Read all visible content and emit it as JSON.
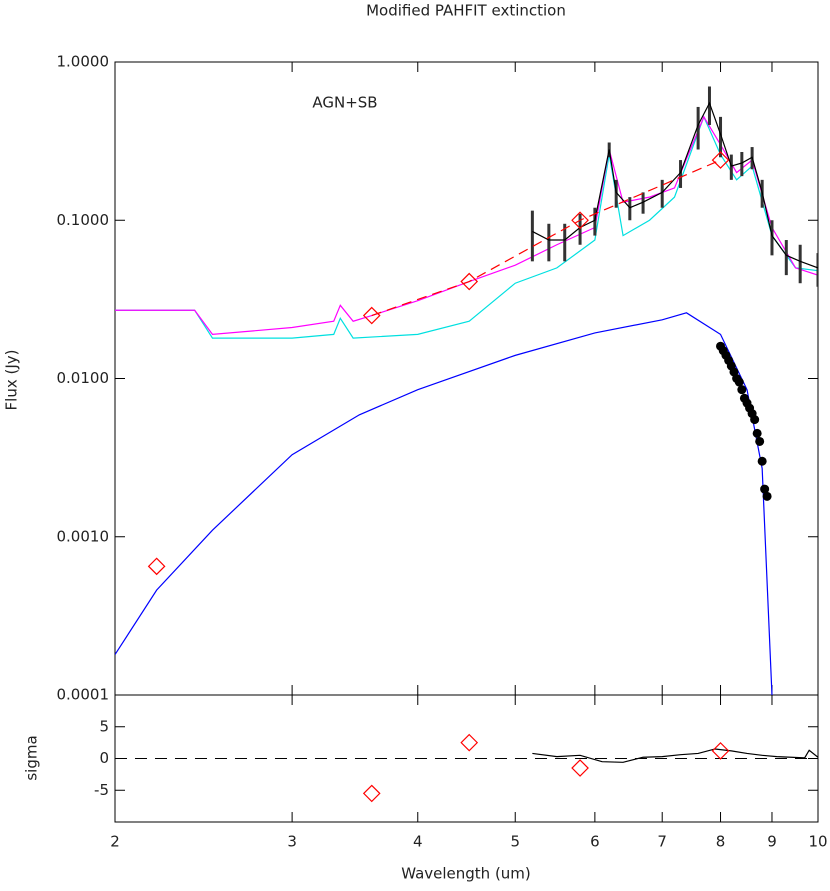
{
  "chart_data": [
    {
      "type": "line",
      "title": "Modified PAHFIT extinction",
      "ylabel": "Flux (Jy)",
      "annotation": "AGN+SB",
      "xlog": true,
      "ylog": true,
      "xlim": [
        2,
        10
      ],
      "xticks": [
        2,
        3,
        4,
        5,
        6,
        7,
        8,
        9,
        10
      ],
      "ylim": [
        0.0001,
        1
      ],
      "yticks": [
        {
          "value": 1,
          "label": "1.0000"
        },
        {
          "value": 0.1,
          "label": "0.1000"
        },
        {
          "value": 0.01,
          "label": "0.0100"
        },
        {
          "value": 0.001,
          "label": "0.0010"
        },
        0.0001
      ],
      "series": [
        {
          "color": "#0000ff",
          "style": "line",
          "x": [
            2.0,
            2.2,
            2.5,
            3.0,
            3.5,
            4.0,
            5.0,
            6.0,
            7.0,
            7.4,
            8.0,
            8.5,
            8.8,
            9.0
          ],
          "values": [
            0.00018,
            0.00046,
            0.0011,
            0.0033,
            0.0059,
            0.0085,
            0.014,
            0.0194,
            0.0235,
            0.026,
            0.019,
            0.0085,
            0.0027,
            0.0001
          ]
        },
        {
          "color": "#00e0e0",
          "style": "line",
          "x": [
            2.0,
            2.4,
            2.5,
            3.0,
            3.3,
            3.35,
            3.45,
            4.0,
            4.5,
            5.0,
            5.5,
            6.0,
            6.2,
            6.4,
            6.8,
            7.2,
            7.7,
            8.0,
            8.3,
            8.6,
            9.0,
            9.5,
            10.0
          ],
          "values": [
            0.027,
            0.027,
            0.018,
            0.018,
            0.019,
            0.024,
            0.018,
            0.019,
            0.023,
            0.04,
            0.05,
            0.075,
            0.26,
            0.08,
            0.1,
            0.14,
            0.45,
            0.26,
            0.18,
            0.22,
            0.08,
            0.05,
            0.048
          ]
        },
        {
          "color": "#ff00ff",
          "style": "line",
          "x": [
            2.0,
            2.4,
            2.5,
            3.0,
            3.3,
            3.35,
            3.45,
            3.6,
            4.0,
            4.5,
            5.0,
            5.5,
            6.0,
            6.2,
            6.4,
            6.8,
            7.2,
            7.7,
            8.0,
            8.3,
            8.6,
            9.0,
            9.5,
            10.0
          ],
          "values": [
            0.027,
            0.027,
            0.019,
            0.021,
            0.023,
            0.029,
            0.023,
            0.025,
            0.031,
            0.041,
            0.052,
            0.07,
            0.09,
            0.28,
            0.13,
            0.14,
            0.16,
            0.45,
            0.3,
            0.2,
            0.24,
            0.09,
            0.05,
            0.045
          ]
        },
        {
          "color": "#000000",
          "style": "line",
          "x": [
            5.2,
            5.4,
            5.6,
            5.8,
            6.0,
            6.2,
            6.3,
            6.5,
            6.7,
            7.0,
            7.3,
            7.6,
            7.8,
            8.0,
            8.2,
            8.4,
            8.6,
            8.8,
            9.0,
            9.3,
            9.6,
            10.0
          ],
          "values": [
            0.085,
            0.075,
            0.075,
            0.09,
            0.1,
            0.28,
            0.15,
            0.12,
            0.13,
            0.15,
            0.2,
            0.4,
            0.55,
            0.35,
            0.22,
            0.23,
            0.25,
            0.15,
            0.08,
            0.06,
            0.055,
            0.05
          ],
          "errors": [
            0.03,
            0.02,
            0.02,
            0.02,
            0.02,
            0.03,
            0.03,
            0.02,
            0.02,
            0.03,
            0.04,
            0.12,
            0.15,
            0.1,
            0.04,
            0.04,
            0.04,
            0.03,
            0.02,
            0.015,
            0.015,
            0.012
          ]
        },
        {
          "color": "#ff0000",
          "style": "dashed",
          "x": [
            3.6,
            4.5,
            5.8,
            8.0
          ],
          "values": [
            0.025,
            0.041,
            0.1,
            0.24
          ]
        },
        {
          "color": "#ff0000",
          "style": "diamond",
          "x": [
            2.2,
            3.6,
            4.5,
            5.8,
            8.0
          ],
          "values": [
            0.00065,
            0.025,
            0.041,
            0.1,
            0.24
          ]
        },
        {
          "color": "#000000",
          "style": "dot",
          "x": [
            8.0,
            8.05,
            8.1,
            8.15,
            8.2,
            8.25,
            8.3,
            8.35,
            8.4,
            8.45,
            8.5,
            8.55,
            8.6,
            8.65,
            8.7,
            8.75,
            8.8,
            8.85,
            8.9
          ],
          "values": [
            0.016,
            0.015,
            0.014,
            0.013,
            0.012,
            0.011,
            0.01,
            0.0095,
            0.0085,
            0.0075,
            0.007,
            0.0065,
            0.006,
            0.0055,
            0.0045,
            0.004,
            0.003,
            0.002,
            0.0018
          ]
        }
      ]
    },
    {
      "type": "line",
      "xlabel": "Wavelength (um)",
      "ylabel": "sigma",
      "xlog": true,
      "ylog": false,
      "xlim": [
        2,
        10
      ],
      "xticks": [
        2,
        3,
        4,
        5,
        6,
        7,
        8,
        9,
        10
      ],
      "ylim": [
        -10,
        10
      ],
      "yticks": [
        -5,
        0,
        5
      ],
      "hlines": [
        0
      ],
      "series": [
        {
          "color": "#000000",
          "style": "line",
          "x": [
            5.2,
            5.5,
            5.8,
            6.1,
            6.4,
            6.7,
            7.0,
            7.3,
            7.6,
            7.9,
            8.2,
            8.5,
            8.8,
            9.1,
            9.4,
            9.7,
            9.8,
            10.0
          ],
          "values": [
            0.8,
            0.3,
            0.5,
            -0.5,
            -0.6,
            0.2,
            0.3,
            0.6,
            0.8,
            1.5,
            1.2,
            0.8,
            0.5,
            0.3,
            0.2,
            0.1,
            1.3,
            0.2
          ]
        },
        {
          "color": "#ff0000",
          "style": "diamond",
          "x": [
            3.6,
            4.5,
            5.8,
            8.0
          ],
          "values": [
            -5.5,
            2.5,
            -1.5,
            1.2
          ]
        }
      ]
    }
  ]
}
